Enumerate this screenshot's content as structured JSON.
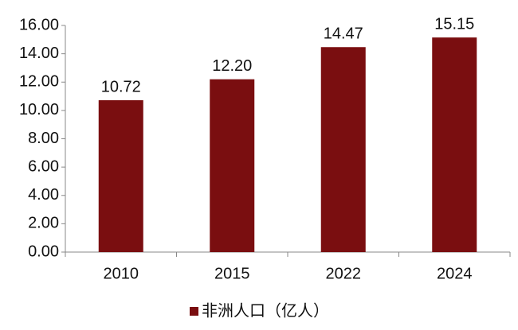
{
  "chart_data": {
    "type": "bar",
    "categories": [
      "2010",
      "2015",
      "2022",
      "2024"
    ],
    "series": [
      {
        "name": "非洲人口（亿人）",
        "color": "#7a0e10",
        "values": [
          10.72,
          12.2,
          14.47,
          15.15
        ],
        "value_labels": [
          "10.72",
          "12.20",
          "14.47",
          "15.15"
        ]
      }
    ],
    "ylim": [
      0,
      16
    ],
    "yticks": [
      {
        "value": 0,
        "label": "0.00"
      },
      {
        "value": 2,
        "label": "2.00"
      },
      {
        "value": 4,
        "label": "4.00"
      },
      {
        "value": 6,
        "label": "6.00"
      },
      {
        "value": 8,
        "label": "8.00"
      },
      {
        "value": 10,
        "label": "10.00"
      },
      {
        "value": 12,
        "label": "12.00"
      },
      {
        "value": 14,
        "label": "14.00"
      },
      {
        "value": 16,
        "label": "16.00"
      }
    ],
    "grid": false,
    "legend": "bottom"
  }
}
